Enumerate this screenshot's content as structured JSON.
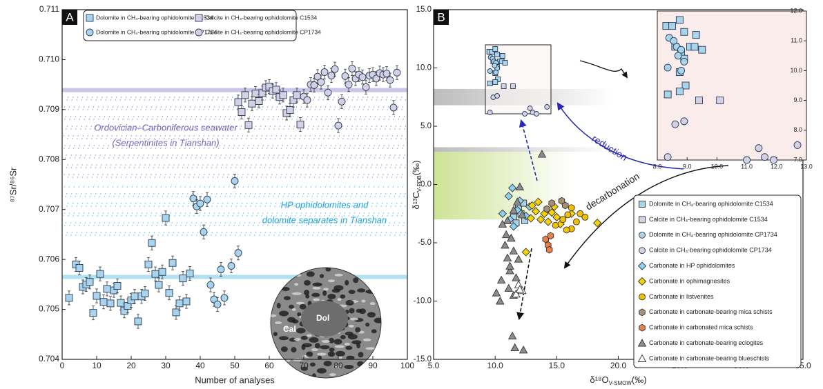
{
  "chart_data": [
    {
      "type": "scatter",
      "panel": "A",
      "xlabel": "Number of analyses",
      "ylabel": "⁸⁷Sr/⁸⁶Sr",
      "xlim": [
        0,
        100
      ],
      "ylim": [
        0.704,
        0.711
      ],
      "xticks": [
        0,
        10,
        20,
        30,
        40,
        50,
        60,
        70,
        80,
        90,
        100
      ],
      "yticks": [
        0.704,
        0.705,
        0.706,
        0.707,
        0.708,
        0.709,
        {
          "value": 0.71,
          "label": "0.710"
        },
        0.711
      ],
      "series": [
        {
          "name": "Dolomite in CH₄-bearing ophidolomite C1534",
          "color": "#a9d4ec",
          "marker": "square",
          "error": 7e-05,
          "x": [
            2,
            4,
            5,
            6,
            7,
            8,
            9,
            10,
            11,
            12,
            13,
            14,
            15,
            16,
            17,
            18,
            19,
            20,
            21,
            22,
            23,
            24,
            25,
            26,
            27,
            28,
            29,
            30,
            31,
            32,
            33,
            34,
            35,
            36,
            37
          ],
          "y": [
            0.70523,
            0.7059,
            0.70583,
            0.70545,
            0.7055,
            0.70555,
            0.70493,
            0.70527,
            0.70571,
            0.70515,
            0.70541,
            0.70512,
            0.70538,
            0.70547,
            0.70513,
            0.70497,
            0.70507,
            0.70518,
            0.70526,
            0.70476,
            0.70526,
            0.70532,
            0.7059,
            0.70633,
            0.70571,
            0.70549,
            0.70575,
            0.70683,
            0.70533,
            0.70593,
            0.70494,
            0.70512,
            0.70562,
            0.70516,
            0.70572
          ]
        },
        {
          "name": "Calcite in CH₄-bearing ophidolomite C1534",
          "color": "#d6d0e4",
          "marker": "square",
          "error": 7e-05,
          "x": [
            51,
            52,
            53,
            54,
            55,
            56,
            57,
            58,
            59,
            60,
            61,
            62,
            63,
            64,
            65,
            66,
            67,
            68,
            69
          ],
          "y": [
            0.70915,
            0.70895,
            0.70929,
            0.70869,
            0.70912,
            0.70932,
            0.70917,
            0.70933,
            0.70944,
            0.70946,
            0.70937,
            0.7094,
            0.70925,
            0.70929,
            0.70893,
            0.70899,
            0.70919,
            0.70929,
            0.7087
          ]
        },
        {
          "name": "Dolomite in CH₄-bearing ophidolomite CP1734",
          "color": "#a9d4ec",
          "marker": "circle",
          "error": 7e-05,
          "x": [
            38,
            39,
            40,
            41,
            42,
            43,
            44,
            45,
            46,
            47,
            49,
            50,
            51
          ],
          "y": [
            0.70722,
            0.70706,
            0.70712,
            0.70655,
            0.7072,
            0.70549,
            0.7052,
            0.7051,
            0.7058,
            0.70523,
            0.70587,
            0.70757,
            0.70613
          ]
        },
        {
          "name": "Calcite in CH₄-bearing ophidolomite CP1734",
          "color": "#d6d0e4",
          "marker": "circle",
          "error": 7e-05,
          "x": [
            70,
            71,
            72,
            73,
            74,
            75,
            76,
            77,
            78,
            79,
            80,
            81,
            82,
            83,
            84,
            85,
            86,
            87,
            88,
            89,
            90,
            91,
            92,
            93,
            94,
            95,
            96,
            97
          ],
          "y": [
            0.70926,
            0.70919,
            0.7095,
            0.70949,
            0.70966,
            0.70955,
            0.70975,
            0.70934,
            0.70968,
            0.70981,
            0.70868,
            0.70916,
            0.70967,
            0.7095,
            0.70982,
            0.70962,
            0.7097,
            0.70965,
            0.70945,
            0.70968,
            0.7097,
            0.70962,
            0.70973,
            0.7097,
            0.70972,
            0.70959,
            0.70904,
            0.70974
          ]
        }
      ],
      "lines": [
        {
          "y": 0.70939,
          "color": "#c3bce3"
        },
        {
          "y": 0.70565,
          "color": "#a6dcf3"
        }
      ],
      "bands": [
        {
          "ylim": [
            0.7076,
            0.7093
          ],
          "color": "#8f86cc"
        },
        {
          "ylim": [
            0.7064,
            0.7075
          ],
          "color": "#4fb9e6"
        }
      ],
      "annotations": [
        "Ordovician–Carboniferous seawater",
        "(Serpentinites in Tianshan)",
        "HP ophidolomites and",
        "dolomite separates in Tianshan",
        "Dol",
        "Cal"
      ]
    },
    {
      "type": "scatter",
      "panel": "B",
      "xlabel": {
        "main": "δ¹⁸O",
        "sub": "V-SMOW",
        "unit": "(‰)"
      },
      "ylabel": {
        "main": "δ¹³C",
        "sub": "V-PDB",
        "unit": "(‰)"
      },
      "xlim": [
        5,
        35
      ],
      "ylim": [
        -15,
        15
      ],
      "xticks": [
        {
          "value": 5,
          "label": "5.0"
        },
        {
          "value": 10,
          "label": "10.0"
        },
        {
          "value": 15,
          "label": "15.0"
        },
        {
          "value": 20,
          "label": "20.0"
        },
        {
          "value": 25,
          "label": "25.0"
        },
        {
          "value": 30,
          "label": "30.0"
        },
        {
          "value": 35,
          "label": "35.0"
        }
      ],
      "yticks": [
        {
          "value": -15,
          "label": "-15.0"
        },
        {
          "value": -10,
          "label": "-10.0"
        },
        {
          "value": -5,
          "label": "-5.0"
        },
        {
          "value": 0,
          "label": "0.0"
        },
        {
          "value": 5,
          "label": "5.0"
        },
        {
          "value": 10,
          "label": "10.0"
        },
        {
          "value": 15,
          "label": "15.0"
        }
      ],
      "series": [
        {
          "name": "Dolomite in CH₄-bearing ophidolomite C1534",
          "color": "#a9d4ec",
          "marker": "square",
          "x": [
            11.5,
            11.9,
            12.1,
            12.4,
            11.7,
            12.3
          ],
          "y": [
            -2.8,
            -1.9,
            -2.5,
            -3.1,
            -3.3,
            -1.6
          ]
        },
        {
          "name": "Calcite in CH₄-bearing ophidolomite C1534",
          "color": "#d6d0e4",
          "marker": "square",
          "x": [],
          "y": []
        },
        {
          "name": "Dolomite in CH₄-bearing ophidolomite CP1734",
          "color": "#a9d4ec",
          "marker": "circle",
          "x": [],
          "y": []
        },
        {
          "name": "Calcite in CH₄-bearing ophidolomite CP1734",
          "color": "#d6d0e4",
          "marker": "circle",
          "x": [],
          "y": []
        },
        {
          "name": "Carbonate in HP ophidolomites",
          "color": "#8fd0f0",
          "marker": "diamond",
          "x": [
            11.4,
            11.1,
            10.6,
            12.0,
            11.8,
            11.2,
            12.5,
            11.5,
            12.8
          ],
          "y": [
            -0.3,
            -1.0,
            -2.5,
            -1.4,
            -2.2,
            -3.0,
            -2.7,
            -3.6,
            -1.9
          ]
        },
        {
          "name": "Carbonate in ophimagnesites",
          "color": "#f5d200",
          "marker": "diamond",
          "x": [
            12.5,
            13.0,
            13.3,
            13.7,
            14.0,
            14.3,
            14.6,
            15.0,
            15.3,
            13.5,
            14.8,
            16.2,
            18.3,
            12.9
          ],
          "y": [
            -5.8,
            -1.8,
            -2.3,
            -3.0,
            -2.5,
            -3.2,
            -2.4,
            -2.8,
            -3.4,
            -1.5,
            -1.9,
            -2.5,
            -3.3,
            -2.9
          ]
        },
        {
          "name": "Carbonate in listvenites",
          "color": "#f2c000",
          "marker": "circle",
          "x": [
            15.5,
            15.9,
            16.2,
            16.6,
            16.9,
            15.8,
            17.3,
            14.9,
            16.2
          ],
          "y": [
            -3.0,
            -2.6,
            -3.8,
            -3.2,
            -2.5,
            -3.9,
            -2.8,
            -3.5,
            -2.0
          ]
        },
        {
          "name": "Carbonate in carbonate-bearing mica schists",
          "color": "#a89078",
          "marker": "hexagon",
          "x": [
            14.6,
            15.4,
            15.7,
            14.2
          ],
          "y": [
            -1.6,
            -1.4,
            -1.8,
            -2.1
          ]
        },
        {
          "name": "Carbonate in carbonated mica schists",
          "color": "#e8804a",
          "marker": "hexagon",
          "x": [
            14.1,
            14.3,
            14.4,
            14.5
          ],
          "y": [
            -4.7,
            -5.2,
            -5.6,
            -4.4
          ]
        },
        {
          "name": "Carbonate in carbonate-bearing eclogites",
          "color": "#8c8c8c",
          "marker": "triangle",
          "x": [
            13.8,
            12.0,
            11.8,
            11.5,
            11.0,
            10.6,
            10.9,
            11.3,
            10.8,
            11.5,
            11.0,
            11.9,
            11.2,
            11.7,
            10.5,
            11.1,
            11.5,
            10.1,
            10.4,
            11.4,
            11.6,
            12.3,
            11.2,
            12.2
          ],
          "y": [
            2.6,
            -0.2,
            -1.5,
            -2.2,
            -3.1,
            -3.4,
            -4.3,
            -4.6,
            -5.2,
            -5.7,
            -6.3,
            -6.4,
            -7.4,
            -8.0,
            -8.2,
            -8.9,
            -9.5,
            -9.3,
            -10.0,
            -13.0,
            -14.0,
            -14.2,
            -7.0,
            -2.6
          ]
        },
        {
          "name": "Carbonate in carbonate-bearing blueschists",
          "color": "#ffffff",
          "marker": "triangle",
          "x": [
            11.9,
            12.2,
            11.7,
            12.0
          ],
          "y": [
            -8.6,
            -9.1,
            -9.4,
            -9.0
          ]
        }
      ],
      "bands": [
        {
          "ylim": [
            -3.0,
            2.8
          ],
          "color": "#c8e08a"
        },
        {
          "ylim": [
            2.8,
            3.2
          ],
          "color": "#b5b5b5"
        },
        {
          "ylim": [
            6.8,
            8.2
          ],
          "color": "#b5b5b5"
        }
      ],
      "annotations": [
        "reduction",
        "decarbonation"
      ],
      "inset": {
        "xlim": [
          8,
          13
        ],
        "ylim": [
          7,
          12
        ],
        "xticks": [
          {
            "value": 8,
            "label": "8.0"
          },
          {
            "value": 9,
            "label": "9.0"
          },
          {
            "value": 10,
            "label": "10.0"
          },
          {
            "value": 11,
            "label": "11.0"
          },
          {
            "value": 12,
            "label": "12.0"
          },
          {
            "value": 13,
            "label": "13.0"
          }
        ],
        "yticks": [
          {
            "value": 7,
            "label": "7.0"
          },
          {
            "value": 8,
            "label": "8.0"
          },
          {
            "value": 9,
            "label": "9.0"
          },
          {
            "value": 10,
            "label": "10.0"
          },
          {
            "value": 11,
            "label": "11.0"
          },
          {
            "value": 12,
            "label": "12.0"
          }
        ],
        "series": [
          {
            "x": [
              8.3,
              8.5,
              8.75,
              8.9,
              9.3,
              8.6,
              9.1,
              9.25,
              9.5,
              8.8,
              8.9,
              8.75,
              8.95,
              8.35,
              8.75
            ],
            "y": [
              11.5,
              11.5,
              11.7,
              11.3,
              11.2,
              10.8,
              10.8,
              10.8,
              10.7,
              10.6,
              10.4,
              9.95,
              9.5,
              9.2,
              9.3
            ]
          },
          {
            "x": [
              9.4,
              10.1
            ],
            "y": [
              9.0,
              9.0
            ]
          },
          {
            "x": [
              8.4,
              8.55,
              8.65,
              8.8,
              8.9,
              8.8,
              8.35,
              8.7
            ],
            "y": [
              11.1,
              11.0,
              10.8,
              10.7,
              10.3,
              10.0,
              10.1,
              10.5
            ]
          },
          {
            "x": [
              8.6,
              8.9,
              8.35,
              11.0,
              11.4,
              11.6,
              11.9,
              12.7
            ],
            "y": [
              8.2,
              8.3,
              7.1,
              7.0,
              7.4,
              7.1,
              7.0,
              7.5
            ]
          }
        ]
      }
    }
  ]
}
